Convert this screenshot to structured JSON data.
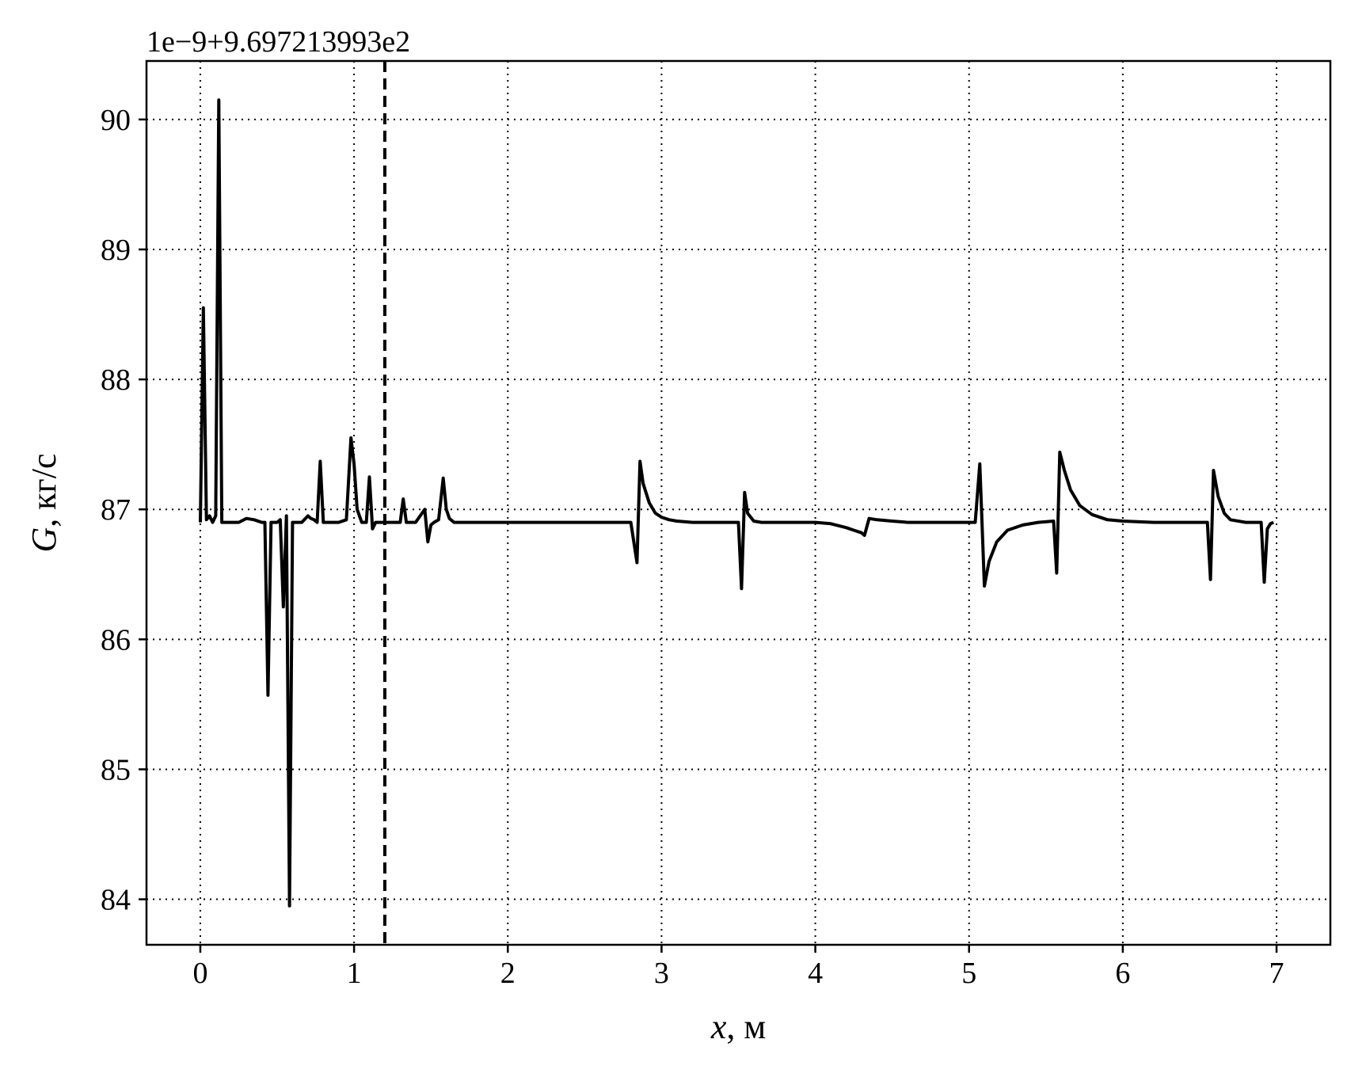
{
  "chart_data": {
    "type": "line",
    "offset_text": "1e−9+9.697213993e2",
    "xlabel_var": "x",
    "xlabel_unit": ", м",
    "ylabel_var": "G",
    "ylabel_unit": ", кг/с",
    "xlim": [
      -0.35,
      7.35
    ],
    "ylim": [
      83.65,
      90.45
    ],
    "xticks": [
      0,
      1,
      2,
      3,
      4,
      5,
      6,
      7
    ],
    "xtick_labels": [
      "0",
      "1",
      "2",
      "3",
      "4",
      "5",
      "6",
      "7"
    ],
    "yticks": [
      84,
      85,
      86,
      87,
      88,
      89,
      90
    ],
    "ytick_labels": [
      "84",
      "85",
      "86",
      "87",
      "88",
      "89",
      "90"
    ],
    "grid": true,
    "vline_x": 1.2,
    "line_color": "#000000",
    "series": [
      {
        "x": [
          0,
          0.02,
          0.04,
          0.06,
          0.08,
          0.1,
          0.12,
          0.14,
          0.16,
          0.18,
          0.2,
          0.25,
          0.3,
          0.35,
          0.4,
          0.42,
          0.44,
          0.46,
          0.48,
          0.5,
          0.52,
          0.54,
          0.56,
          0.58,
          0.6,
          0.62,
          0.64,
          0.66,
          0.7,
          0.72,
          0.74,
          0.76,
          0.78,
          0.8,
          0.82,
          0.84,
          0.9,
          0.95,
          0.98,
          1.0,
          1.02,
          1.05,
          1.08,
          1.1,
          1.12,
          1.14,
          1.16,
          1.2,
          1.25,
          1.3,
          1.32,
          1.34,
          1.36,
          1.4,
          1.46,
          1.48,
          1.5,
          1.52,
          1.55,
          1.58,
          1.6,
          1.62,
          1.65,
          1.7,
          1.8,
          2.0,
          2.5,
          2.8,
          2.84,
          2.86,
          2.88,
          2.92,
          2.96,
          3.0,
          3.05,
          3.1,
          3.2,
          3.5,
          3.52,
          3.54,
          3.56,
          3.6,
          3.65,
          3.7,
          3.8,
          4.0,
          4.1,
          4.2,
          4.25,
          4.3,
          4.32,
          4.35,
          4.4,
          4.5,
          4.6,
          4.8,
          5.0,
          5.04,
          5.07,
          5.1,
          5.13,
          5.18,
          5.25,
          5.35,
          5.45,
          5.55,
          5.57,
          5.59,
          5.62,
          5.66,
          5.72,
          5.8,
          5.9,
          6.0,
          6.2,
          6.4,
          6.55,
          6.57,
          6.59,
          6.62,
          6.66,
          6.7,
          6.8,
          6.9,
          6.92,
          6.94,
          6.96,
          6.98
        ],
        "y": [
          86.9,
          88.55,
          86.92,
          86.95,
          86.9,
          86.95,
          90.15,
          86.9,
          86.9,
          86.9,
          86.9,
          86.9,
          86.93,
          86.92,
          86.9,
          86.9,
          85.57,
          86.9,
          86.9,
          86.9,
          86.92,
          86.25,
          86.95,
          83.95,
          86.9,
          86.9,
          86.9,
          86.9,
          86.95,
          86.93,
          86.92,
          86.9,
          87.37,
          86.9,
          86.9,
          86.9,
          86.9,
          86.92,
          87.55,
          87.35,
          87.0,
          86.9,
          86.9,
          87.25,
          86.85,
          86.9,
          86.9,
          86.9,
          86.9,
          86.9,
          87.08,
          86.9,
          86.9,
          86.9,
          87.0,
          86.75,
          86.88,
          86.9,
          86.92,
          87.24,
          87.0,
          86.93,
          86.9,
          86.9,
          86.9,
          86.9,
          86.9,
          86.9,
          86.59,
          87.37,
          87.2,
          87.05,
          86.97,
          86.94,
          86.92,
          86.91,
          86.9,
          86.9,
          86.39,
          87.13,
          86.97,
          86.91,
          86.9,
          86.9,
          86.9,
          86.9,
          86.89,
          86.86,
          86.84,
          86.82,
          86.8,
          86.93,
          86.92,
          86.91,
          86.9,
          86.9,
          86.9,
          86.9,
          87.35,
          86.41,
          86.6,
          86.75,
          86.84,
          86.88,
          86.9,
          86.91,
          86.51,
          87.44,
          87.3,
          87.15,
          87.03,
          86.96,
          86.92,
          86.91,
          86.9,
          86.9,
          86.9,
          86.46,
          87.3,
          87.1,
          86.97,
          86.92,
          86.9,
          86.9,
          86.44,
          86.85,
          86.89,
          86.9
        ]
      }
    ]
  }
}
